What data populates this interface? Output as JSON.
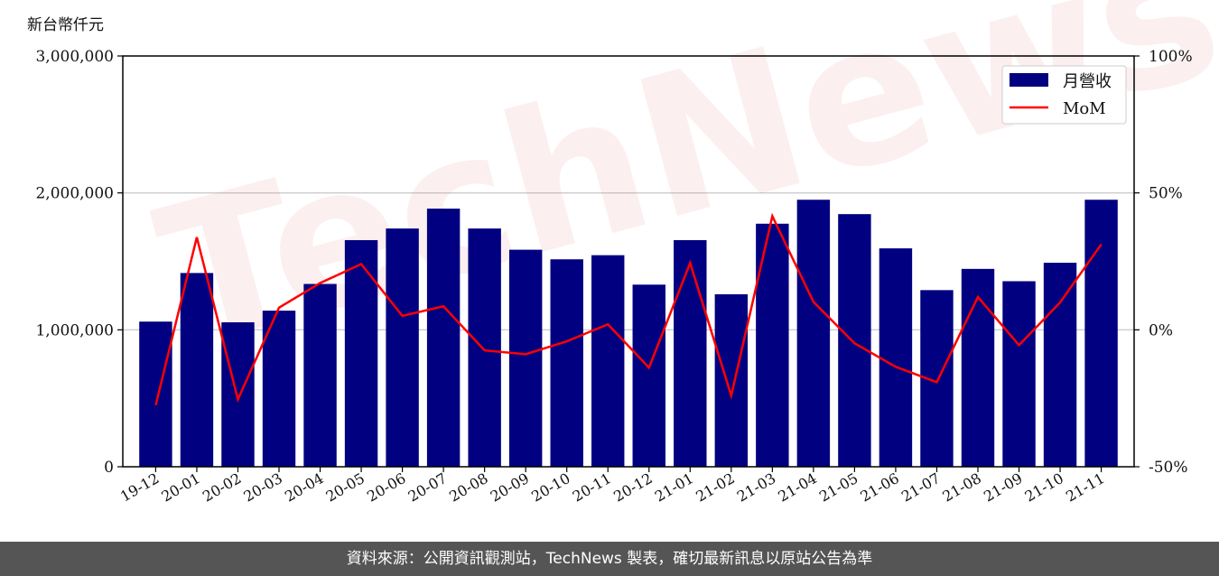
{
  "unit_label": "新台幣仟元",
  "watermark": "TechNews",
  "footer_text": "資料來源：公開資訊觀測站，TechNews 製表，確切最新訊息以原站公告為準",
  "colors": {
    "bar": "#000080",
    "line": "#ff0000",
    "grid": "#cccccc",
    "footer_bg": "#555555"
  },
  "chart_data": {
    "type": "bar",
    "categories": [
      "19-12",
      "20-01",
      "20-02",
      "20-03",
      "20-04",
      "20-05",
      "20-06",
      "20-07",
      "20-08",
      "20-09",
      "20-10",
      "20-11",
      "20-12",
      "21-01",
      "21-02",
      "21-03",
      "21-04",
      "21-05",
      "21-06",
      "21-07",
      "21-08",
      "21-09",
      "21-10",
      "21-11"
    ],
    "series": [
      {
        "name": "月營收",
        "type": "bar",
        "axis": "left",
        "values": [
          1060000,
          1415000,
          1055000,
          1140000,
          1335000,
          1655000,
          1740000,
          1885000,
          1740000,
          1585000,
          1515000,
          1545000,
          1330000,
          1655000,
          1260000,
          1775000,
          1950000,
          1845000,
          1595000,
          1290000,
          1445000,
          1355000,
          1490000,
          1950000
        ]
      },
      {
        "name": "MoM",
        "type": "line",
        "axis": "right",
        "values": [
          -27.5,
          33.8,
          -25.4,
          8.1,
          17.1,
          24.0,
          5.1,
          8.6,
          -7.5,
          -8.9,
          -4.2,
          2.0,
          -13.8,
          24.4,
          -24.0,
          41.5,
          10.2,
          -4.9,
          -13.5,
          -19.1,
          12.0,
          -5.6,
          10.0,
          31.2
        ]
      }
    ],
    "y_left": {
      "lim": [
        0,
        3000000
      ],
      "ticks": [
        "0",
        "1,000,000",
        "2,000,000",
        "3,000,000"
      ]
    },
    "y_right": {
      "lim": [
        -50,
        100
      ],
      "ticks": [
        "-50%",
        "0%",
        "50%",
        "100%"
      ]
    },
    "grid": true,
    "legend_position": "top-right"
  }
}
